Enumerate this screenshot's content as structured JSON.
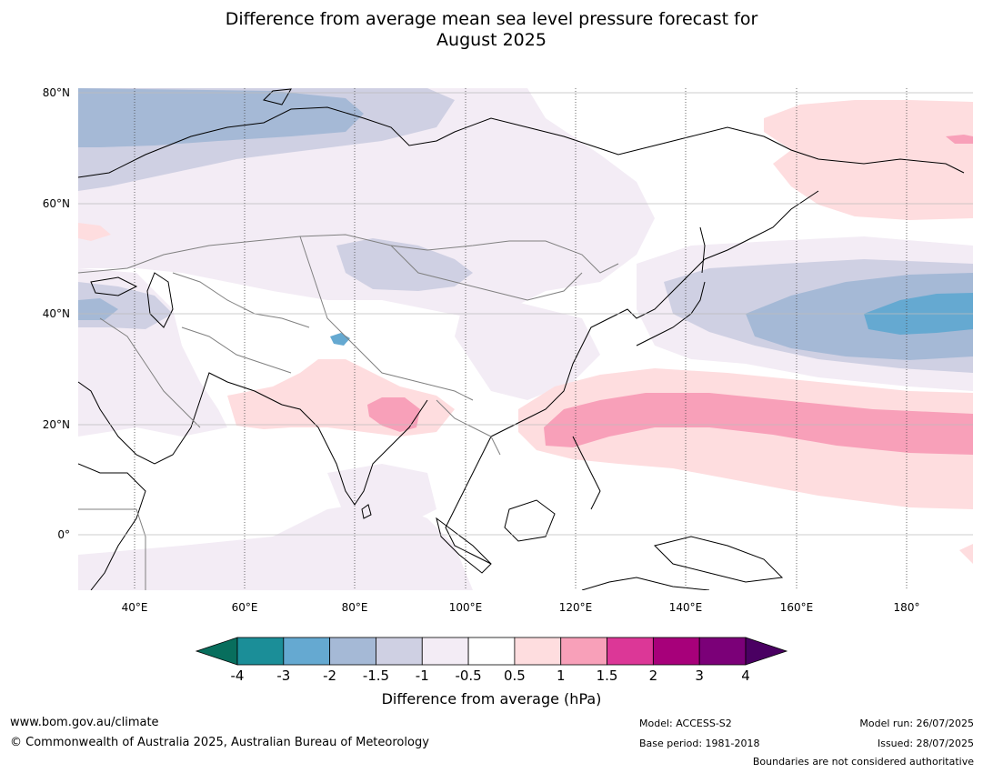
{
  "title": {
    "line1": "Difference from average mean sea level pressure forecast for",
    "line2": "August 2025"
  },
  "map": {
    "region": "Asia and western Pacific",
    "lat_labels": [
      "80°N",
      "60°N",
      "40°N",
      "20°N",
      "0°"
    ],
    "lon_labels": [
      "40°E",
      "60°E",
      "80°E",
      "100°E",
      "120°E",
      "140°E",
      "160°E",
      "180°"
    ]
  },
  "colorbar": {
    "ticks": [
      "-4",
      "-3",
      "-2",
      "-1.5",
      "-1",
      "-0.5",
      "0.5",
      "1",
      "1.5",
      "2",
      "3",
      "4"
    ],
    "colors": [
      "#1b8e98",
      "#65a9d1",
      "#a5b9d6",
      "#cfd0e3",
      "#f3ecf5",
      "#ffffff",
      "#fedddf",
      "#f8a0b9",
      "#dc3797",
      "#a7007a",
      "#7b0078"
    ],
    "low_extend_color": "#086e5d",
    "high_extend_color": "#4a0062",
    "label": "Difference from average (hPa)"
  },
  "footer": {
    "website": "www.bom.gov.au/climate",
    "copyright": "© Commonwealth of Australia 2025, Australian Bureau of Meteorology",
    "model": "Model: ACCESS-S2",
    "base_period": "Base period: 1981-2018",
    "model_run": "Model run: 26/07/2025",
    "issued": "Issued: 28/07/2025",
    "disclaimer": "Boundaries are not considered authoritative"
  }
}
